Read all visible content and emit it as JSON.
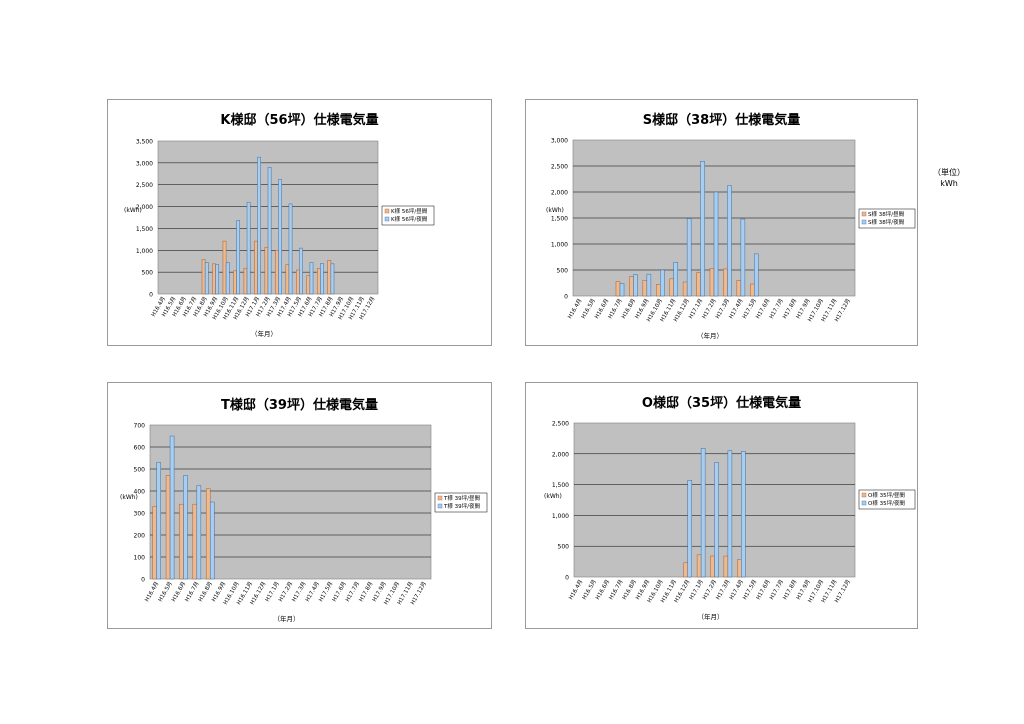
{
  "unit_note": {
    "line1": "（単位）",
    "line2": "kWh"
  },
  "x_categories": [
    "H16.4月",
    "H16.5月",
    "H16.6月",
    "H16.7月",
    "H16.8月",
    "H16.9月",
    "H16.10月",
    "H16.11月",
    "H16.12月",
    "H17.1月",
    "H17.2月",
    "H17.3月",
    "H17.4月",
    "H17.5月",
    "H17.6月",
    "H17.7月",
    "H17.8月",
    "H17.9月",
    "H17.10月",
    "H17.11月",
    "H17.12月"
  ],
  "colors": {
    "plot_bg": "#c0c0c0",
    "day": "#f0b98c",
    "night": "#a9cdef",
    "day_border": "#a0603a",
    "night_border": "#3a6ea5"
  },
  "chart_data": [
    {
      "type": "bar",
      "title": "K様邸（56坪）仕様電気量",
      "ylabel": "(kWh)",
      "xlabel": "（年月）",
      "ylim": [
        0,
        3500
      ],
      "ytick_labels": [
        "0",
        "500",
        "1,000",
        "1,500",
        "2,000",
        "2,500",
        "3,000",
        "3,500"
      ],
      "series": [
        {
          "name": "K様 56坪/昼間",
          "values": [
            null,
            null,
            null,
            null,
            790,
            690,
            1210,
            530,
            590,
            1210,
            1070,
            1000,
            670,
            550,
            420,
            580,
            770,
            null,
            null,
            null,
            null
          ]
        },
        {
          "name": "K様 56坪/夜間",
          "values": [
            null,
            null,
            null,
            null,
            720,
            670,
            720,
            1680,
            2100,
            3130,
            2900,
            2620,
            2060,
            1050,
            720,
            700,
            690,
            null,
            null,
            null,
            null
          ]
        }
      ]
    },
    {
      "type": "bar",
      "title": "S様邸（38坪）仕様電気量",
      "ylabel": "(kWh)",
      "xlabel": "（年月）",
      "ylim": [
        0,
        3000
      ],
      "ytick_labels": [
        "0",
        "500",
        "1,000",
        "1,500",
        "2,000",
        "2,500",
        "3,000"
      ],
      "series": [
        {
          "name": "S様 38坪/昼間",
          "values": [
            null,
            null,
            null,
            280,
            370,
            300,
            220,
            330,
            270,
            450,
            530,
            520,
            300,
            230,
            null,
            null,
            null,
            null,
            null,
            null,
            null
          ]
        },
        {
          "name": "S様 38坪/夜間",
          "values": [
            null,
            null,
            null,
            240,
            410,
            420,
            500,
            650,
            1490,
            2590,
            2000,
            2120,
            1480,
            810,
            null,
            null,
            null,
            null,
            null,
            null,
            null
          ]
        }
      ]
    },
    {
      "type": "bar",
      "title": "T様邸（39坪）仕様電気量",
      "ylabel": "(kWh)",
      "xlabel": "（年月）",
      "ylim": [
        0,
        700
      ],
      "ytick_labels": [
        "0",
        "100",
        "200",
        "300",
        "400",
        "500",
        "600",
        "700"
      ],
      "series": [
        {
          "name": "T様 39坪/昼間",
          "values": [
            330,
            470,
            340,
            340,
            410,
            null,
            null,
            null,
            null,
            null,
            null,
            null,
            null,
            null,
            null,
            null,
            null,
            null,
            null,
            null,
            null
          ]
        },
        {
          "name": "T様 39坪/夜間",
          "values": [
            530,
            650,
            470,
            425,
            350,
            null,
            null,
            null,
            null,
            null,
            null,
            null,
            null,
            null,
            null,
            null,
            null,
            null,
            null,
            null,
            null
          ]
        }
      ]
    },
    {
      "type": "bar",
      "title": "O様邸（35坪）仕様電気量",
      "ylabel": "(kWh)",
      "xlabel": "（年月）",
      "ylim": [
        0,
        2500
      ],
      "ytick_labels": [
        "0",
        "500",
        "1,000",
        "1,500",
        "2,000",
        "2,500"
      ],
      "series": [
        {
          "name": "O様 35坪/昼間",
          "values": [
            null,
            null,
            null,
            null,
            null,
            null,
            null,
            null,
            230,
            360,
            340,
            340,
            280,
            null,
            null,
            null,
            null,
            null,
            null,
            null,
            null
          ]
        },
        {
          "name": "O様 35坪/夜間",
          "values": [
            null,
            null,
            null,
            null,
            null,
            null,
            null,
            null,
            1570,
            2090,
            1860,
            2050,
            2040,
            null,
            null,
            null,
            null,
            null,
            null,
            null,
            null
          ]
        }
      ]
    }
  ]
}
